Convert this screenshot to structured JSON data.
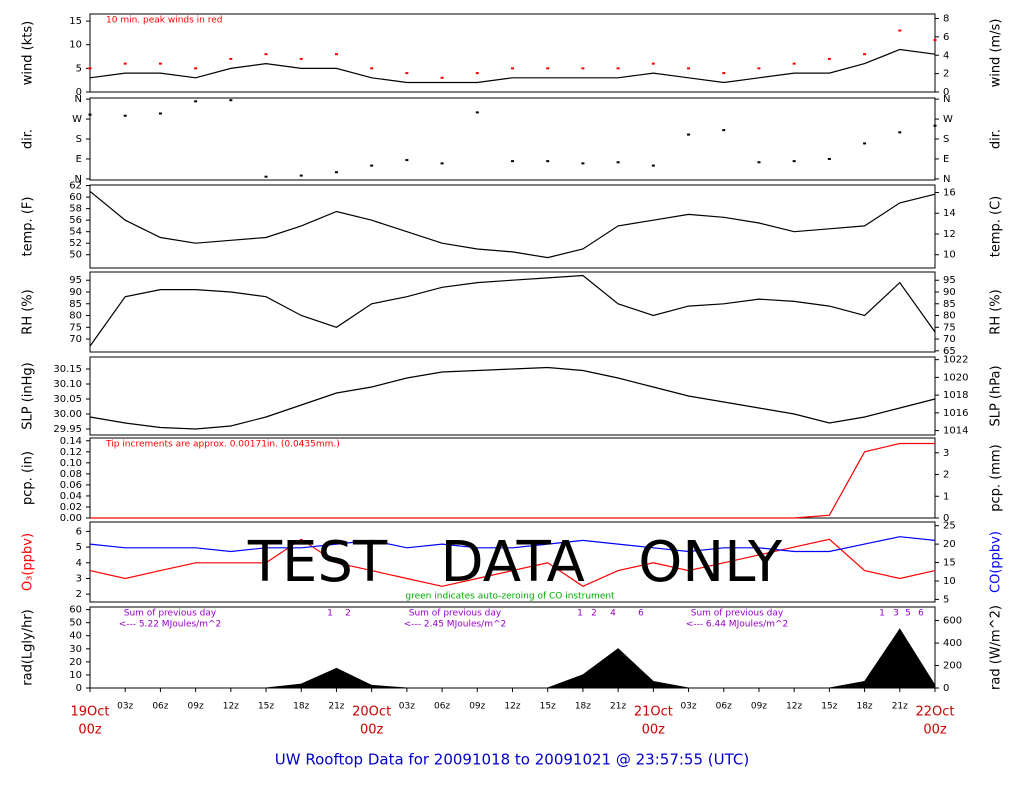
{
  "title": "UW Rooftop Data for 20091018  to  20091021 @ 23:57:55  (UTC)",
  "watermark": "TEST   DATA   ONLY",
  "x_axis": {
    "categories": [
      {
        "day": "19Oct",
        "hour": "00z"
      },
      "03z",
      "06z",
      "09z",
      "12z",
      "15z",
      "18z",
      "21z",
      {
        "day": "20Oct",
        "hour": "00z"
      },
      "03z",
      "06z",
      "09z",
      "12z",
      "15z",
      "18z",
      "21z",
      {
        "day": "21Oct",
        "hour": "00z"
      },
      "03z",
      "06z",
      "09z",
      "12z",
      "15z",
      "18z",
      "21z",
      {
        "day": "22Oct",
        "hour": "00z"
      }
    ]
  },
  "chart_data": [
    {
      "type": "line",
      "ylabel": "wind (kts)",
      "y2label": "wind (m/s)",
      "annotation": "10 min. peak winds in red",
      "annotation_color": "#ff0000",
      "ylim": [
        0,
        16.5
      ],
      "yticks": [
        0,
        5,
        10,
        15
      ],
      "y2lim": [
        0,
        8.49
      ],
      "y2ticks": [
        0,
        2,
        4,
        6,
        8
      ],
      "series": [
        {
          "color": "#000000",
          "values": [
            3,
            4,
            4,
            3,
            5,
            6,
            5,
            5,
            3,
            2,
            2,
            2,
            3,
            3,
            3,
            3,
            4,
            3,
            2,
            3,
            4,
            4,
            6,
            9,
            8
          ]
        },
        {
          "color": "#ff0000",
          "style": "points",
          "values": [
            5,
            6,
            6,
            5,
            7,
            8,
            7,
            8,
            5,
            4,
            3,
            4,
            5,
            5,
            5,
            5,
            6,
            5,
            4,
            5,
            6,
            7,
            8,
            13,
            11
          ]
        }
      ]
    },
    {
      "type": "scatter",
      "ylabel": "dir.",
      "y2label": "dir.",
      "ylim": [
        -5,
        365
      ],
      "yticks": [
        {
          "value": 0,
          "label": "N"
        },
        {
          "value": 90,
          "label": "E"
        },
        {
          "value": 180,
          "label": "S"
        },
        {
          "value": 270,
          "label": "W"
        },
        {
          "value": 360,
          "label": "N"
        }
      ],
      "y2lim": [
        -5,
        365
      ],
      "y2ticks": [
        {
          "value": 0,
          "label": "N"
        },
        {
          "value": 90,
          "label": "E"
        },
        {
          "value": 180,
          "label": "S"
        },
        {
          "value": 270,
          "label": "W"
        },
        {
          "value": 360,
          "label": "N"
        }
      ],
      "series": [
        {
          "color": "#000000",
          "values": [
            290,
            285,
            295,
            350,
            355,
            10,
            15,
            30,
            60,
            85,
            70,
            300,
            80,
            80,
            70,
            75,
            60,
            200,
            220,
            75,
            80,
            90,
            160,
            210,
            240
          ]
        }
      ]
    },
    {
      "type": "line",
      "ylabel": "temp. (F)",
      "y2label": "temp. (C)",
      "ylim": [
        47.7,
        62.1
      ],
      "yticks": [
        50,
        52,
        54,
        56,
        58,
        60,
        62
      ],
      "y2lim": [
        8.72,
        16.72
      ],
      "y2ticks": [
        10,
        12,
        14,
        16
      ],
      "series": [
        {
          "color": "#000000",
          "values": [
            61,
            56,
            53,
            52,
            52.5,
            53,
            55,
            57.5,
            56,
            54,
            52,
            51,
            50.5,
            49.5,
            51,
            55,
            56,
            57,
            56.5,
            55.5,
            54,
            54.5,
            55,
            59,
            60.5
          ]
        }
      ]
    },
    {
      "type": "line",
      "ylabel": "RH (%)",
      "y2label": "RH (%)",
      "ylim": [
        64.5,
        98.5
      ],
      "yticks": [
        70,
        75,
        80,
        85,
        90,
        95
      ],
      "y2lim": [
        64.5,
        98.5
      ],
      "y2ticks": [
        65,
        70,
        75,
        80,
        85,
        90,
        95
      ],
      "series": [
        {
          "color": "#000000",
          "values": [
            67,
            88,
            91,
            91,
            90,
            88,
            80,
            75,
            85,
            88,
            92,
            94,
            95,
            96,
            97,
            85,
            80,
            84,
            85,
            87,
            86,
            84,
            80,
            94,
            73
          ]
        }
      ]
    },
    {
      "type": "line",
      "ylabel": "SLP (inHg)",
      "y2label": "SLP (hPa)",
      "ylim": [
        29.93,
        30.19
      ],
      "yticks": [
        29.95,
        {
          "value": 30,
          "label": "30.00"
        },
        30.05,
        {
          "value": 30.1,
          "label": "30.10"
        },
        30.15
      ],
      "y2lim": [
        1013.5,
        1022.3
      ],
      "y2ticks": [
        1014,
        1016,
        1018,
        1020,
        1022
      ],
      "series": [
        {
          "color": "#000000",
          "values": [
            29.99,
            29.97,
            29.955,
            29.95,
            29.96,
            29.99,
            30.03,
            30.07,
            30.09,
            30.12,
            30.14,
            30.145,
            30.15,
            30.155,
            30.145,
            30.12,
            30.09,
            30.06,
            30.04,
            30.02,
            30.0,
            29.97,
            29.99,
            30.02,
            30.05
          ]
        }
      ]
    },
    {
      "type": "line",
      "ylabel": "pcp. (in)",
      "y2label": "pcp. (mm)",
      "annotation": "Tip increments are approx. 0.00171in. (0.0435mm.)",
      "annotation_color": "#ff0000",
      "ylim": [
        0,
        0.145
      ],
      "yticks": [
        {
          "value": 0,
          "label": "0.00"
        },
        0.02,
        0.04,
        0.06,
        0.08,
        {
          "value": 0.1,
          "label": "0.10"
        },
        0.12,
        0.14
      ],
      "y2lim": [
        0,
        3.68
      ],
      "y2ticks": [
        0,
        1,
        2,
        3
      ],
      "series": [
        {
          "color": "#ff0000",
          "values": [
            0,
            0,
            0,
            0,
            0,
            0,
            0,
            0,
            0,
            0,
            0,
            0,
            0,
            0,
            0,
            0,
            0,
            0,
            0,
            0,
            0,
            0.005,
            0.12,
            0.135,
            0.135
          ]
        }
      ]
    },
    {
      "type": "line",
      "ylabel": "O₃(ppbv)",
      "ylabel_color": "#ff0000",
      "y2label": "CO(ppbv)",
      "y2label_color": "#0000ff",
      "annotation": "green indicates auto-zeroing of CO instrument",
      "annotation_color": "#00aa00",
      "ylim": [
        1.5,
        6.6
      ],
      "yticks": [
        2,
        3,
        4,
        5,
        6
      ],
      "y2lim": [
        4.3,
        26
      ],
      "y2ticks": [
        5,
        10,
        15,
        20,
        25
      ],
      "series": [
        {
          "color": "#ff0000",
          "values": [
            3.5,
            3,
            3.5,
            4,
            4,
            4,
            5.5,
            4,
            3.5,
            3,
            2.5,
            3,
            3.5,
            4,
            2.5,
            3.5,
            4,
            3.5,
            4,
            4.5,
            5,
            5.5,
            3.5,
            3,
            3.5
          ]
        },
        {
          "color": "#0000ff",
          "axis": "y2",
          "values": [
            20,
            19,
            19,
            19,
            18,
            19,
            19,
            20,
            21,
            19,
            20,
            19,
            19,
            20,
            21,
            20,
            19,
            18,
            19,
            19,
            18,
            18,
            20,
            22,
            21
          ]
        }
      ]
    },
    {
      "type": "area",
      "ylabel": "rad(Lgly/hr)",
      "y2label": "rad (W/m^2)",
      "ylim": [
        0,
        62
      ],
      "yticks": [
        0,
        10,
        20,
        30,
        40,
        50,
        60
      ],
      "y2lim": [
        0,
        721
      ],
      "y2ticks": [
        0,
        200,
        400,
        600
      ],
      "notes": [
        [
          "Sum of previous day",
          "<--- 5.22 MJoules/m^2"
        ],
        [
          "Sum of previous day",
          "<--- 2.45 MJoules/m^2"
        ],
        [
          "Sum of previous day",
          "<--- 6.44 MJoules/m^2"
        ]
      ],
      "hour_marks": [
        [
          "1",
          "2"
        ],
        [
          "1",
          "2",
          "4",
          "6"
        ],
        [
          "1",
          "3",
          "5",
          "6"
        ]
      ],
      "series": [
        {
          "color": "#000000",
          "values": [
            0,
            0,
            0,
            0,
            0,
            0,
            3,
            15,
            2,
            0,
            0,
            0,
            0,
            0,
            10,
            30,
            5,
            0,
            0,
            0,
            0,
            0,
            5,
            45,
            2
          ]
        }
      ]
    }
  ]
}
